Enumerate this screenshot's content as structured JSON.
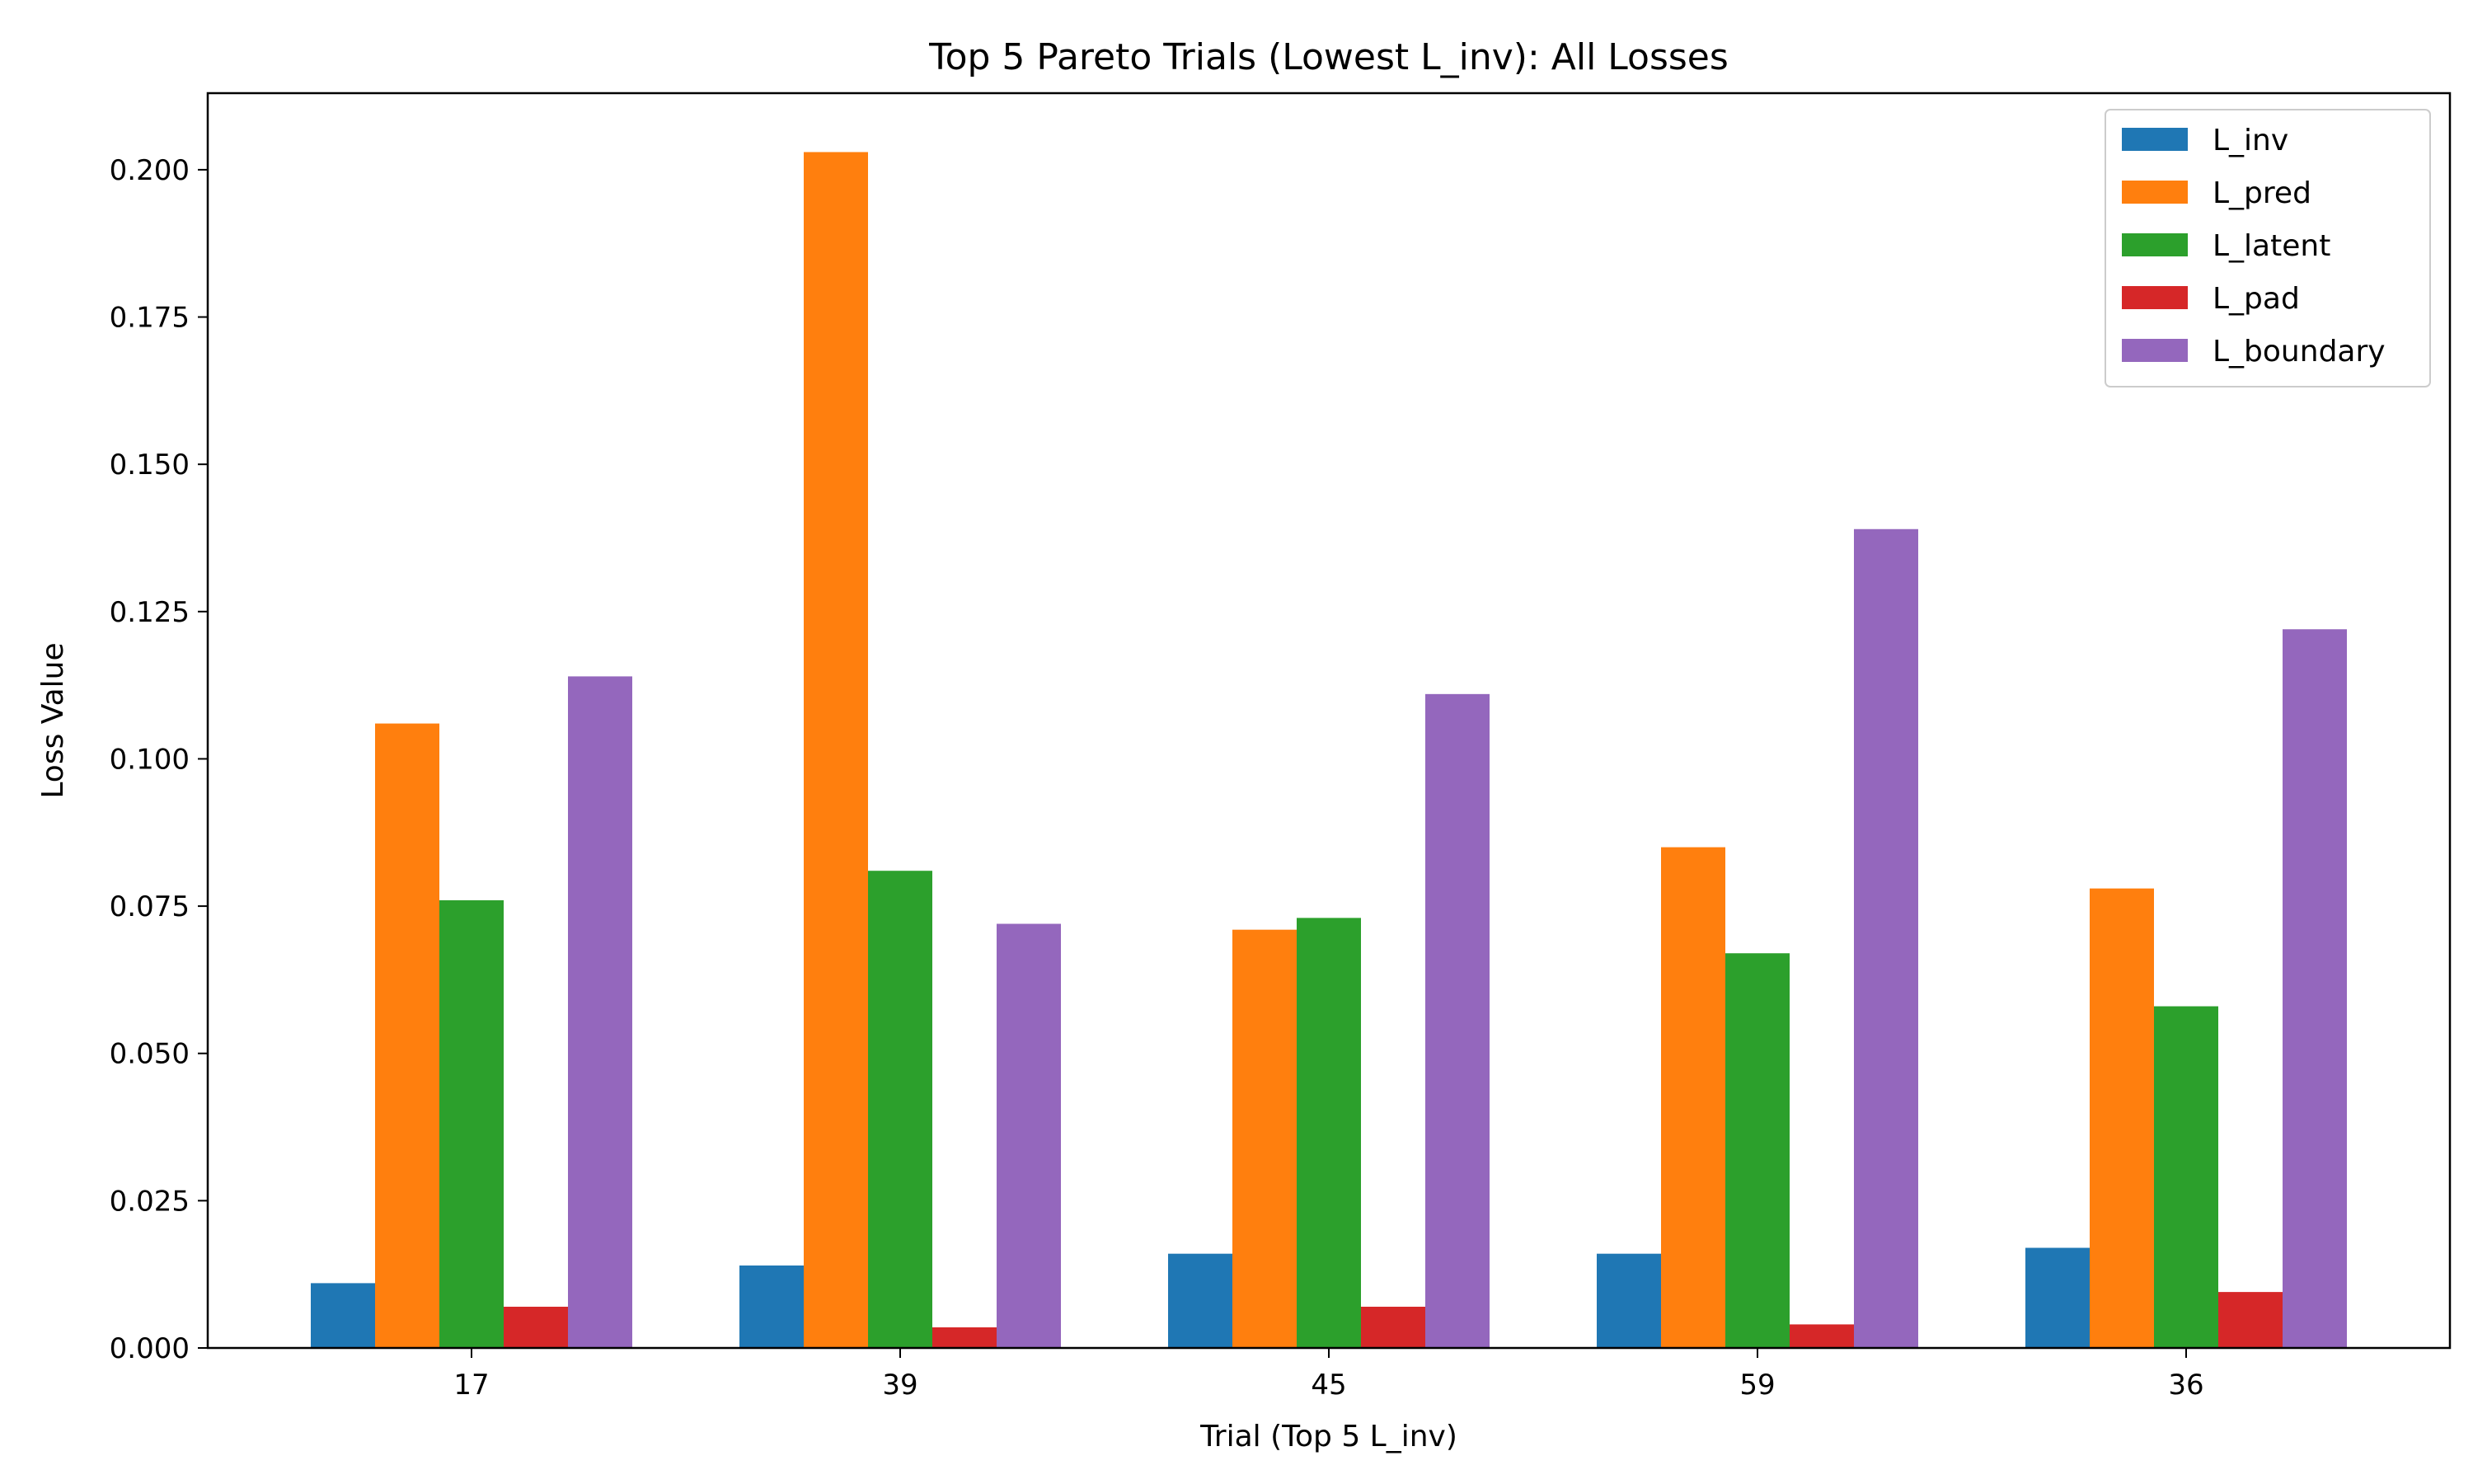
{
  "chart_data": {
    "type": "bar",
    "title": "Top 5 Pareto Trials (Lowest L_inv): All Losses",
    "xlabel": "Trial (Top 5 L_inv)",
    "ylabel": "Loss Value",
    "categories": [
      "17",
      "39",
      "45",
      "59",
      "36"
    ],
    "ylim": [
      0,
      0.213
    ],
    "yticks": [
      "0.000",
      "0.025",
      "0.050",
      "0.075",
      "0.100",
      "0.125",
      "0.150",
      "0.175",
      "0.200"
    ],
    "grid": false,
    "legend_position": "top-right",
    "series": [
      {
        "name": "L_inv",
        "color": "#1f77b4",
        "values": [
          0.011,
          0.014,
          0.016,
          0.016,
          0.017
        ]
      },
      {
        "name": "L_pred",
        "color": "#ff7f0e",
        "values": [
          0.106,
          0.203,
          0.071,
          0.085,
          0.078
        ]
      },
      {
        "name": "L_latent",
        "color": "#2ca02c",
        "values": [
          0.076,
          0.081,
          0.073,
          0.067,
          0.058
        ]
      },
      {
        "name": "L_pad",
        "color": "#d62728",
        "values": [
          0.007,
          0.0035,
          0.007,
          0.004,
          0.0095
        ]
      },
      {
        "name": "L_boundary",
        "color": "#9467bd",
        "values": [
          0.114,
          0.072,
          0.111,
          0.139,
          0.122
        ]
      }
    ]
  }
}
